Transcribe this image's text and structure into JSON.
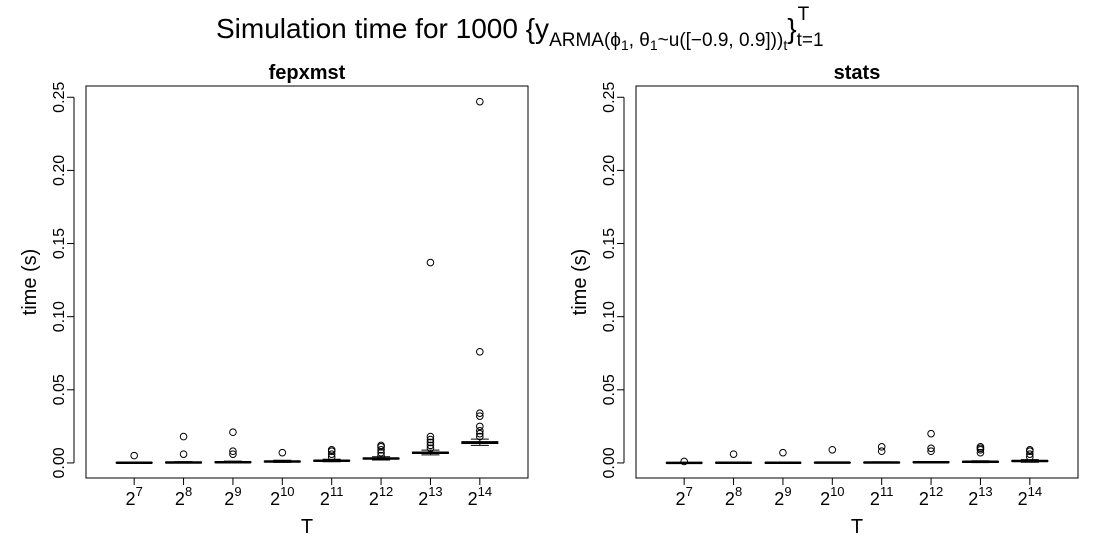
{
  "title_parts": [
    "Simulation time for 1000  {y",
    "ARMA(ϕ",
    "1",
    ", θ",
    "1",
    "~u([−0.9, 0.9]))",
    "t",
    "}",
    "t=1",
    "T"
  ],
  "chart_data": [
    {
      "type": "boxplot",
      "title": "fepxmst",
      "xlabel": "T",
      "ylabel": "time (s)",
      "categories": [
        {
          "base": "2",
          "exp": "7"
        },
        {
          "base": "2",
          "exp": "8"
        },
        {
          "base": "2",
          "exp": "9"
        },
        {
          "base": "2",
          "exp": "10"
        },
        {
          "base": "2",
          "exp": "11"
        },
        {
          "base": "2",
          "exp": "12"
        },
        {
          "base": "2",
          "exp": "13"
        },
        {
          "base": "2",
          "exp": "14"
        }
      ],
      "boxes": [
        {
          "min": 0,
          "q1": 0,
          "median": 0.0001,
          "q3": 0.0003,
          "max": 0.0006,
          "outliers": [
            0.005
          ]
        },
        {
          "min": 0,
          "q1": 0.0001,
          "median": 0.0003,
          "q3": 0.0005,
          "max": 0.0009,
          "outliers": [
            0.018,
            0.006
          ]
        },
        {
          "min": 0.0001,
          "q1": 0.0003,
          "median": 0.0005,
          "q3": 0.0007,
          "max": 0.0012,
          "outliers": [
            0.021,
            0.008,
            0.006
          ]
        },
        {
          "min": 0.0004,
          "q1": 0.0008,
          "median": 0.001,
          "q3": 0.0012,
          "max": 0.0018,
          "outliers": [
            0.007
          ]
        },
        {
          "min": 0.0008,
          "q1": 0.0013,
          "median": 0.0015,
          "q3": 0.0018,
          "max": 0.0025,
          "outliers": [
            0.009,
            0.008,
            0.006,
            0.004
          ]
        },
        {
          "min": 0.002,
          "q1": 0.0027,
          "median": 0.003,
          "q3": 0.0033,
          "max": 0.0042,
          "outliers": [
            0.012,
            0.011,
            0.009,
            0.007,
            0.005
          ]
        },
        {
          "min": 0.0055,
          "q1": 0.0065,
          "median": 0.007,
          "q3": 0.0074,
          "max": 0.0088,
          "outliers": [
            0.137,
            0.018,
            0.016,
            0.014,
            0.012,
            0.01
          ]
        },
        {
          "min": 0.012,
          "q1": 0.0133,
          "median": 0.014,
          "q3": 0.0145,
          "max": 0.0163,
          "outliers": [
            0.247,
            0.076,
            0.034,
            0.032,
            0.025,
            0.022,
            0.02,
            0.018
          ]
        }
      ],
      "color": "#000000",
      "ylim": [
        -0.0103,
        0.2577
      ],
      "yticks": [
        {
          "value": 0,
          "label": "0.00"
        },
        {
          "value": 0.05,
          "label": "0.05"
        },
        {
          "value": 0.1,
          "label": "0.10"
        },
        {
          "value": 0.15,
          "label": "0.15"
        },
        {
          "value": 0.2,
          "label": "0.20"
        },
        {
          "value": 0.25,
          "label": "0.25"
        }
      ]
    },
    {
      "type": "boxplot",
      "title": "stats",
      "xlabel": "T",
      "ylabel": "time (s)",
      "categories": [
        {
          "base": "2",
          "exp": "7"
        },
        {
          "base": "2",
          "exp": "8"
        },
        {
          "base": "2",
          "exp": "9"
        },
        {
          "base": "2",
          "exp": "10"
        },
        {
          "base": "2",
          "exp": "11"
        },
        {
          "base": "2",
          "exp": "12"
        },
        {
          "base": "2",
          "exp": "13"
        },
        {
          "base": "2",
          "exp": "14"
        }
      ],
      "boxes": [
        {
          "min": 0,
          "q1": 0,
          "median": 0,
          "q3": 0.0001,
          "max": 0.0003,
          "outliers": [
            0.001
          ]
        },
        {
          "min": 0,
          "q1": 0,
          "median": 0.0001,
          "q3": 0.0002,
          "max": 0.0004,
          "outliers": [
            0.006
          ]
        },
        {
          "min": 0,
          "q1": 0,
          "median": 0.0001,
          "q3": 0.0002,
          "max": 0.0004,
          "outliers": [
            0.007
          ]
        },
        {
          "min": 0,
          "q1": 0.0001,
          "median": 0.0002,
          "q3": 0.0003,
          "max": 0.0005,
          "outliers": [
            0.009
          ]
        },
        {
          "min": 0,
          "q1": 0.0001,
          "median": 0.0003,
          "q3": 0.0004,
          "max": 0.0007,
          "outliers": [
            0.011,
            0.008
          ]
        },
        {
          "min": 0.0001,
          "q1": 0.0003,
          "median": 0.0005,
          "q3": 0.0007,
          "max": 0.001,
          "outliers": [
            0.02,
            0.01,
            0.008
          ]
        },
        {
          "min": 0.0002,
          "q1": 0.0005,
          "median": 0.0008,
          "q3": 0.001,
          "max": 0.0015,
          "outliers": [
            0.011,
            0.01,
            0.009,
            0.007
          ]
        },
        {
          "min": 0.0005,
          "q1": 0.001,
          "median": 0.0013,
          "q3": 0.0016,
          "max": 0.0023,
          "outliers": [
            0.009,
            0.008,
            0.006,
            0.004
          ]
        }
      ],
      "color": "#000000",
      "ylim": [
        -0.0103,
        0.2577
      ],
      "yticks": [
        {
          "value": 0,
          "label": "0.00"
        },
        {
          "value": 0.05,
          "label": "0.05"
        },
        {
          "value": 0.1,
          "label": "0.10"
        },
        {
          "value": 0.15,
          "label": "0.15"
        },
        {
          "value": 0.2,
          "label": "0.20"
        },
        {
          "value": 0.25,
          "label": "0.25"
        }
      ]
    }
  ]
}
